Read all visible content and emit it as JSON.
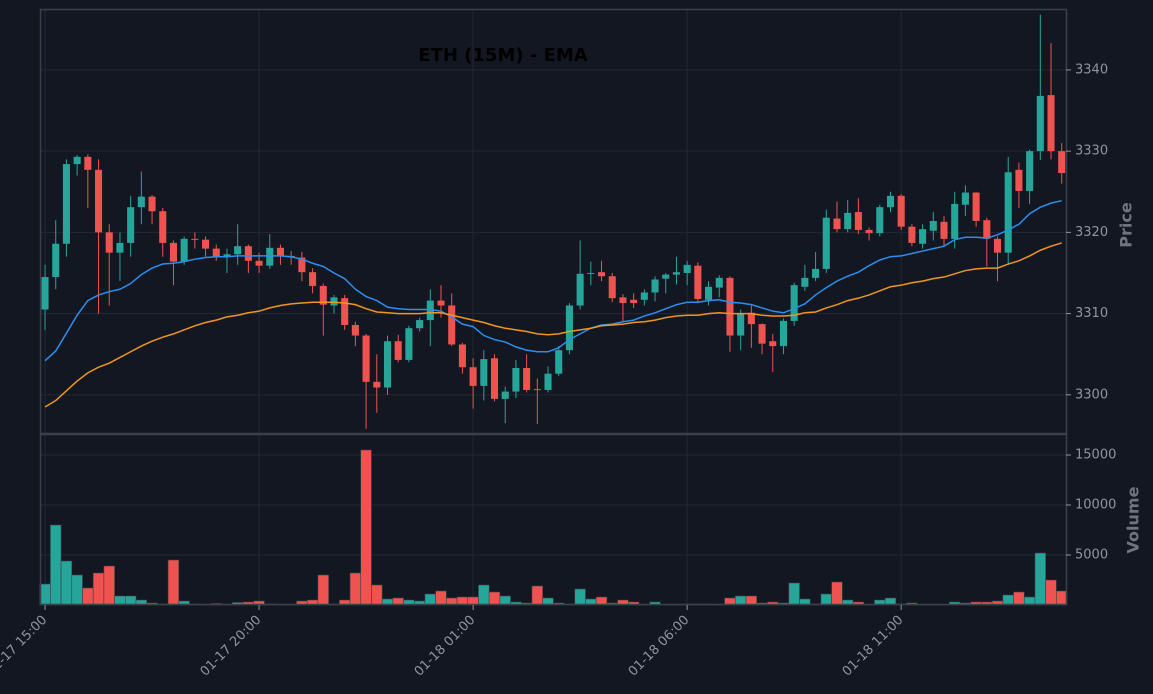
{
  "chart_data": {
    "type": "candlestick",
    "title": "ETH (15M) - EMA",
    "ylabel": "Price",
    "up_color": "#26a69a",
    "down_color": "#ef5350",
    "grid": true,
    "xlim": [
      -0.47,
      95.4
    ],
    "xticks": [
      {
        "value": 0,
        "label": "01-17 15:00"
      },
      {
        "value": 20,
        "label": "01-17 20:00"
      },
      {
        "value": 40,
        "label": "01-18 01:00"
      },
      {
        "value": 60,
        "label": "01-18 06:00"
      },
      {
        "value": 80,
        "label": "01-18 11:00"
      }
    ],
    "ylim": [
      3295.3,
      3347.5
    ],
    "yticks": [
      3300,
      3310,
      3320,
      3330,
      3340
    ],
    "open": [
      3310.5,
      3314.5,
      3318.6,
      3328.4,
      3329.3,
      3327.7,
      3320,
      3317.5,
      3318.7,
      3323.1,
      3324.4,
      3322.6,
      3318.7,
      3316.4,
      3319.2,
      3319.1,
      3318,
      3317,
      3317.3,
      3318.3,
      3316.5,
      3315.9,
      3318.1,
      3317.1,
      3316.9,
      3315.1,
      3313.4,
      3311,
      3311.9,
      3308.6,
      3307.3,
      3301.6,
      3300.9,
      3306.6,
      3304.3,
      3308.2,
      3309.2,
      3311.6,
      3311,
      3306.2,
      3303.4,
      3301.1,
      3304.5,
      3299.5,
      3300.4,
      3303.3,
      3300.7,
      3300.6,
      3302.6,
      3305.5,
      3311,
      3314.9,
      3315.1,
      3314.6,
      3312,
      3311.7,
      3311.7,
      3312.6,
      3314.3,
      3314.8,
      3315,
      3315.9,
      3311.7,
      3313.2,
      3314.4,
      3307.3,
      3310.1,
      3308.7,
      3306.6,
      3306,
      3309.1,
      3313.3,
      3314.4,
      3315.5,
      3321.7,
      3320.4,
      3322.5,
      3320.3,
      3319.9,
      3323.1,
      3324.5,
      3320.7,
      3318.6,
      3320.2,
      3321.3,
      3319.2,
      3323.4,
      3324.9,
      3321.5,
      3319.2,
      3317.5,
      3327.7,
      3325.1,
      3330,
      3336.9,
      3330
    ],
    "high": [
      3316,
      3321.5,
      3329,
      3329.5,
      3329.6,
      3329,
      3321,
      3320,
      3324.5,
      3327.5,
      3324.6,
      3323,
      3319,
      3319.5,
      3320,
      3319.5,
      3318.5,
      3318,
      3321,
      3318.5,
      3317.5,
      3319.8,
      3318.5,
      3317.7,
      3317.6,
      3315.6,
      3313.7,
      3312.3,
      3312.3,
      3309,
      3307.5,
      3305,
      3307.3,
      3307.4,
      3308.5,
      3309.5,
      3313,
      3313.5,
      3312.5,
      3306.4,
      3304.5,
      3305.5,
      3305,
      3301,
      3304.3,
      3305,
      3302,
      3303.5,
      3306,
      3311.3,
      3319,
      3316.4,
      3316.5,
      3315,
      3312.4,
      3312.5,
      3313,
      3314.6,
      3315,
      3317,
      3316.5,
      3316.3,
      3314,
      3314.7,
      3314.6,
      3310.5,
      3311,
      3308.8,
      3307.5,
      3309.4,
      3313.8,
      3316,
      3317.6,
      3322.8,
      3323.8,
      3324,
      3324.2,
      3320.6,
      3323.4,
      3325,
      3324.7,
      3321,
      3321,
      3322.5,
      3322,
      3325,
      3325.8,
      3325,
      3321.8,
      3319.5,
      3329.3,
      3328.6,
      3330.2,
      3346.8,
      3343.3,
      3331
    ],
    "low": [
      3308,
      3313,
      3317,
      3327,
      3323,
      3310,
      3311,
      3314,
      3317,
      3321,
      3321,
      3317,
      3313.5,
      3316,
      3318,
      3317,
      3316.5,
      3315,
      3316,
      3315,
      3315,
      3315.5,
      3316,
      3316,
      3314,
      3312.5,
      3307.3,
      3310,
      3308,
      3306,
      3295.8,
      3297.8,
      3300,
      3304,
      3304,
      3307.8,
      3306,
      3309.5,
      3306,
      3302.6,
      3298.3,
      3299.3,
      3299.2,
      3296.5,
      3299.6,
      3300.3,
      3296.4,
      3300.3,
      3302.3,
      3305,
      3310.5,
      3313.5,
      3314,
      3311.4,
      3309,
      3310.7,
      3311,
      3311.5,
      3312.5,
      3313.6,
      3313.5,
      3311.3,
      3311,
      3312,
      3305.3,
      3305.5,
      3305.8,
      3305,
      3302.8,
      3305,
      3308.5,
      3312.8,
      3314,
      3315,
      3320,
      3320,
      3319.8,
      3319,
      3319.5,
      3322.5,
      3320.3,
      3318.3,
      3318,
      3319,
      3318.3,
      3318,
      3322,
      3320.7,
      3315.8,
      3314,
      3316,
      3323,
      3323.5,
      3328.9,
      3329,
      3326
    ],
    "close": [
      3314.5,
      3318.6,
      3328.4,
      3329.3,
      3327.7,
      3320,
      3317.5,
      3318.7,
      3323.1,
      3324.4,
      3322.6,
      3318.7,
      3316.4,
      3319.2,
      3319.1,
      3318,
      3317,
      3317.3,
      3318.3,
      3316.5,
      3315.9,
      3318.1,
      3317.1,
      3316.9,
      3315.1,
      3313.4,
      3311.1,
      3312,
      3308.6,
      3307.3,
      3301.6,
      3300.9,
      3306.6,
      3304.3,
      3308.2,
      3309.2,
      3311.6,
      3311,
      3306.2,
      3303.4,
      3301.1,
      3304.4,
      3299.5,
      3300.4,
      3303.3,
      3300.6,
      3300.6,
      3302.6,
      3305.5,
      3311,
      3314.9,
      3315,
      3314.6,
      3311.9,
      3311.3,
      3311.3,
      3312.6,
      3314.2,
      3314.8,
      3315.1,
      3316,
      3311.8,
      3313.3,
      3314.4,
      3307.3,
      3310,
      3308.7,
      3306.3,
      3306,
      3309.1,
      3313.5,
      3314.4,
      3315.5,
      3321.8,
      3320.4,
      3322.4,
      3320.3,
      3319.9,
      3323.1,
      3324.5,
      3320.7,
      3318.7,
      3320.4,
      3321.4,
      3319.2,
      3323.5,
      3324.9,
      3321.4,
      3319.2,
      3317.5,
      3327.4,
      3325.1,
      3330,
      3336.8,
      3330,
      3327.3
    ],
    "series": [
      {
        "color": "#2a8ff0",
        "values": [
          3304.2,
          3305.4,
          3307.6,
          3309.8,
          3311.6,
          3312.3,
          3312.7,
          3313,
          3313.7,
          3314.8,
          3315.6,
          3316.1,
          3316.2,
          3316.4,
          3316.7,
          3316.9,
          3317,
          3317,
          3317.1,
          3317.1,
          3317.1,
          3317.1,
          3317.1,
          3317,
          3316.7,
          3316.2,
          3315.8,
          3315,
          3314.3,
          3313,
          3312.1,
          3311.6,
          3310.8,
          3310.6,
          3310.5,
          3310.5,
          3310.5,
          3310.3,
          3309.6,
          3308.7,
          3308.4,
          3307.3,
          3306.8,
          3306.5,
          3305.9,
          3305.5,
          3305.3,
          3305.3,
          3305.8,
          3306.8,
          3307.5,
          3308.2,
          3308.6,
          3308.7,
          3309,
          3309.2,
          3309.7,
          3310.1,
          3310.6,
          3311.1,
          3311.4,
          3311.4,
          3311.6,
          3311.7,
          3311.4,
          3311.3,
          3311.1,
          3310.7,
          3310.3,
          3310.1,
          3310.6,
          3311.2,
          3312.3,
          3313.2,
          3314,
          3314.6,
          3315.1,
          3315.9,
          3316.6,
          3317,
          3317.1,
          3317.4,
          3317.7,
          3318,
          3318.3,
          3319.1,
          3319.4,
          3319.4,
          3319.3,
          3319.7,
          3320.3,
          3321,
          3322.3,
          3323.1,
          3323.6,
          3323.9
        ]
      },
      {
        "color": "#f0961e",
        "values": [
          3298.5,
          3299.3,
          3300.5,
          3301.7,
          3302.7,
          3303.4,
          3303.9,
          3304.6,
          3305.3,
          3306,
          3306.6,
          3307.1,
          3307.5,
          3308,
          3308.5,
          3308.9,
          3309.2,
          3309.6,
          3309.8,
          3310.1,
          3310.3,
          3310.7,
          3311,
          3311.2,
          3311.3,
          3311.4,
          3311.4,
          3311.4,
          3311.3,
          3311.1,
          3310.6,
          3310.2,
          3310.1,
          3310,
          3310,
          3310,
          3310.1,
          3310.1,
          3309.8,
          3309.5,
          3309.2,
          3308.9,
          3308.5,
          3308.2,
          3308,
          3307.8,
          3307.5,
          3307.4,
          3307.5,
          3307.8,
          3308,
          3308.2,
          3308.5,
          3308.6,
          3308.7,
          3308.9,
          3309,
          3309.2,
          3309.5,
          3309.7,
          3309.8,
          3309.8,
          3310,
          3310.1,
          3310,
          3310,
          3310,
          3309.8,
          3309.7,
          3309.7,
          3309.8,
          3310.1,
          3310.2,
          3310.7,
          3311.1,
          3311.6,
          3311.9,
          3312.3,
          3312.8,
          3313.3,
          3313.5,
          3313.8,
          3314,
          3314.3,
          3314.5,
          3314.9,
          3315.3,
          3315.5,
          3315.6,
          3315.6,
          3316.1,
          3316.5,
          3317.1,
          3317.8,
          3318.3,
          3318.7
        ]
      }
    ],
    "volume": {
      "ylabel": "Volume",
      "ylim": [
        0,
        17100
      ],
      "yticks": [
        5000,
        10000,
        15000
      ],
      "values": [
        2100,
        8000,
        4400,
        3000,
        1700,
        3200,
        3900,
        900,
        900,
        500,
        200,
        100,
        4500,
        400,
        100,
        50,
        150,
        50,
        250,
        300,
        400,
        100,
        50,
        50,
        400,
        500,
        3000,
        100,
        500,
        3200,
        15500,
        2000,
        600,
        700,
        500,
        400,
        1100,
        1400,
        700,
        800,
        800,
        2000,
        1300,
        900,
        300,
        200,
        1900,
        700,
        200,
        100,
        1600,
        600,
        800,
        200,
        500,
        300,
        50,
        300,
        50,
        50,
        100,
        100,
        100,
        50,
        700,
        900,
        900,
        200,
        300,
        200,
        2200,
        600,
        100,
        1100,
        2300,
        500,
        300,
        50,
        500,
        700,
        100,
        200,
        50,
        50,
        50,
        300,
        200,
        300,
        300,
        400,
        1000,
        1300,
        800,
        5200,
        2500,
        1400
      ]
    }
  }
}
